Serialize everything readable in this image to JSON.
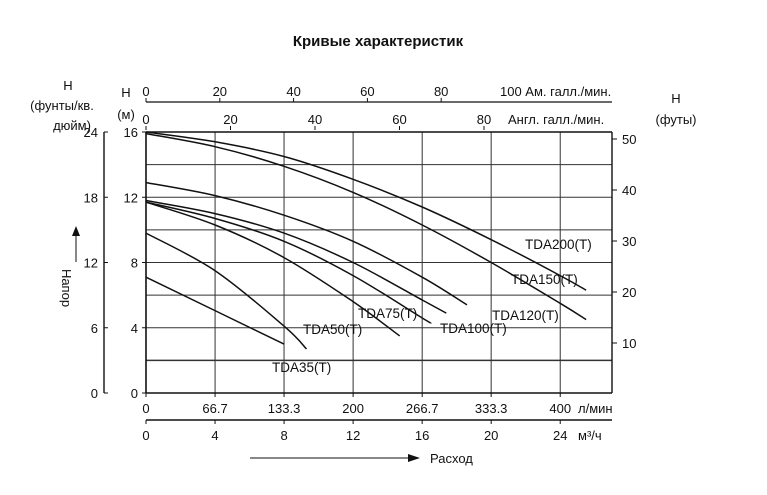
{
  "chart_data": {
    "type": "line",
    "title": "Кривые характеристик",
    "left_axes": {
      "psi_label": [
        "H",
        "(фунты/кв.",
        "дюйм)"
      ],
      "psi_ticks": [
        "24",
        "18",
        "12",
        "6",
        "0"
      ],
      "m_label": [
        "H",
        "(м)"
      ],
      "m_ticks": [
        "16",
        "12",
        "8",
        "4",
        "0"
      ],
      "ylabel": "Напор",
      "ylim_m": [
        0,
        16
      ]
    },
    "right_axis": {
      "label": [
        "H",
        "(футы)"
      ],
      "ticks": [
        "50",
        "40",
        "30",
        "20",
        "10"
      ]
    },
    "top_axes": {
      "us_gpm_ticks": [
        "0",
        "20",
        "40",
        "60",
        "80"
      ],
      "us_gpm_label": "100  Ам. галл./мин.",
      "imp_gpm_ticks": [
        "0",
        "20",
        "40",
        "60",
        "80"
      ],
      "imp_gpm_label": "Англ. галл./мин."
    },
    "bottom_axes": {
      "lpm_ticks": [
        "0",
        "66.7",
        "133.3",
        "200",
        "266.7",
        "333.3",
        "400"
      ],
      "lpm_label": "л/мин",
      "m3h_ticks": [
        "0",
        "4",
        "8",
        "12",
        "16",
        "20",
        "24"
      ],
      "m3h_label": "м³/ч",
      "xlabel": "Расход",
      "xlim_lpm": [
        0,
        450
      ]
    },
    "series": [
      {
        "name": "TDA200(T)",
        "x": [
          0,
          66.7,
          133.3,
          200,
          266.7,
          333.3,
          400,
          425
        ],
        "y": [
          16.0,
          15.4,
          14.5,
          13.1,
          11.4,
          9.4,
          7.2,
          6.3
        ]
      },
      {
        "name": "TDA150(T)",
        "x": [
          0,
          66.7,
          133.3,
          200,
          266.7,
          333.3,
          400,
          425
        ],
        "y": [
          15.9,
          15.1,
          13.9,
          12.3,
          10.3,
          8.0,
          5.5,
          4.5
        ]
      },
      {
        "name": "TDA120(T)",
        "x": [
          0,
          66.7,
          133.3,
          200,
          266.7,
          310
        ],
        "y": [
          12.9,
          12.1,
          10.9,
          9.3,
          7.1,
          5.4
        ]
      },
      {
        "name": "TDA100(T)",
        "x": [
          0,
          66.7,
          133.3,
          200,
          266.7,
          290
        ],
        "y": [
          11.8,
          11.0,
          9.8,
          8.0,
          5.7,
          4.9
        ]
      },
      {
        "name": "TDA75(T)",
        "x": [
          0,
          66.7,
          133.3,
          200,
          266.7,
          275
        ],
        "y": [
          11.7,
          10.7,
          9.3,
          7.2,
          4.6,
          4.3
        ]
      },
      {
        "name": "TDA50(T)",
        "x": [
          0,
          66.7,
          133.3,
          200,
          245
        ],
        "y": [
          11.7,
          10.3,
          8.3,
          5.6,
          3.5
        ]
      },
      {
        "name": "TDA35(T)",
        "x": [
          0,
          66.7,
          133.3,
          155
        ],
        "y": [
          9.8,
          7.5,
          4.1,
          2.7
        ]
      },
      {
        "name": "",
        "x": [
          0,
          133.3
        ],
        "y": [
          7.1,
          3.0
        ]
      }
    ],
    "grid": true
  }
}
